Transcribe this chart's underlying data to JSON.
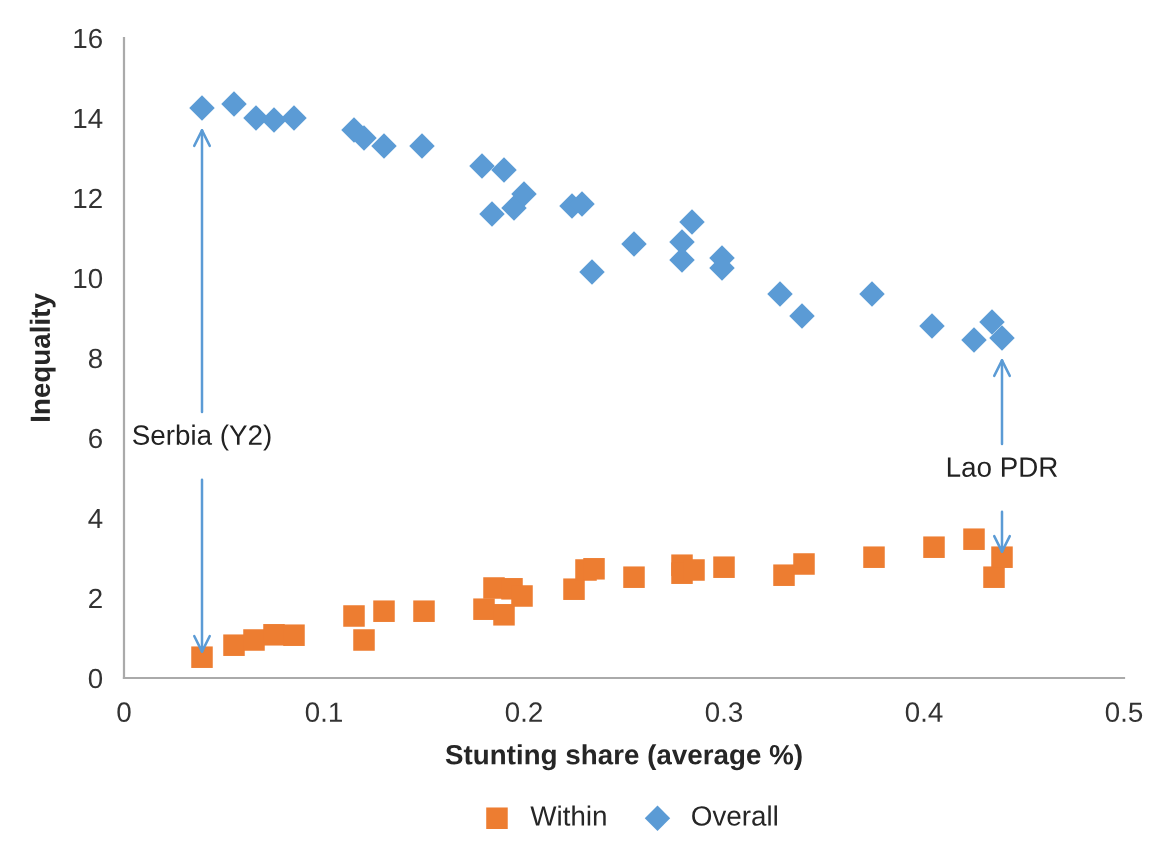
{
  "chart_data": {
    "type": "scatter",
    "xlabel": "Stunting share (average %)",
    "ylabel": "Inequality",
    "xlim": [
      0,
      0.5
    ],
    "xticks": [
      0,
      0.1,
      0.2,
      0.3,
      0.4,
      0.5
    ],
    "ylim": [
      0,
      16
    ],
    "yticks": [
      0,
      2,
      4,
      6,
      8,
      10,
      12,
      14,
      16
    ],
    "grid": false,
    "legend": "bottom",
    "series": [
      {
        "name": "Within",
        "color": "#ed7d31",
        "marker": "square",
        "x": [
          0.039,
          0.055,
          0.065,
          0.075,
          0.085,
          0.115,
          0.12,
          0.13,
          0.15,
          0.18,
          0.185,
          0.19,
          0.194,
          0.199,
          0.225,
          0.231,
          0.235,
          0.255,
          0.279,
          0.279,
          0.285,
          0.3,
          0.33,
          0.34,
          0.375,
          0.405,
          0.425,
          0.435,
          0.439
        ],
        "values": [
          0.52,
          0.82,
          0.95,
          1.08,
          1.07,
          1.55,
          0.95,
          1.67,
          1.67,
          1.72,
          2.25,
          1.58,
          2.23,
          2.05,
          2.22,
          2.7,
          2.73,
          2.52,
          2.82,
          2.62,
          2.7,
          2.77,
          2.57,
          2.85,
          3.02,
          3.27,
          3.47,
          2.52,
          3.02
        ]
      },
      {
        "name": "Overall",
        "color": "#5b9bd5",
        "marker": "diamond",
        "x": [
          0.039,
          0.055,
          0.066,
          0.075,
          0.085,
          0.115,
          0.12,
          0.13,
          0.149,
          0.179,
          0.184,
          0.19,
          0.195,
          0.2,
          0.224,
          0.229,
          0.234,
          0.255,
          0.279,
          0.279,
          0.284,
          0.299,
          0.299,
          0.328,
          0.339,
          0.374,
          0.404,
          0.425,
          0.434,
          0.439
        ],
        "values": [
          14.25,
          14.35,
          14.0,
          13.95,
          14.0,
          13.7,
          13.5,
          13.3,
          13.3,
          12.8,
          11.6,
          12.7,
          11.75,
          12.1,
          11.8,
          11.85,
          10.15,
          10.85,
          10.9,
          10.45,
          11.4,
          10.5,
          10.25,
          9.6,
          9.05,
          9.6,
          8.8,
          8.45,
          8.9,
          8.5
        ]
      }
    ],
    "annotations": [
      {
        "text": "Serbia (Y2)",
        "x": 0.039,
        "y": 0.52
      },
      {
        "text": "Lao PDR",
        "x": 0.439,
        "y": 3.02
      }
    ]
  }
}
